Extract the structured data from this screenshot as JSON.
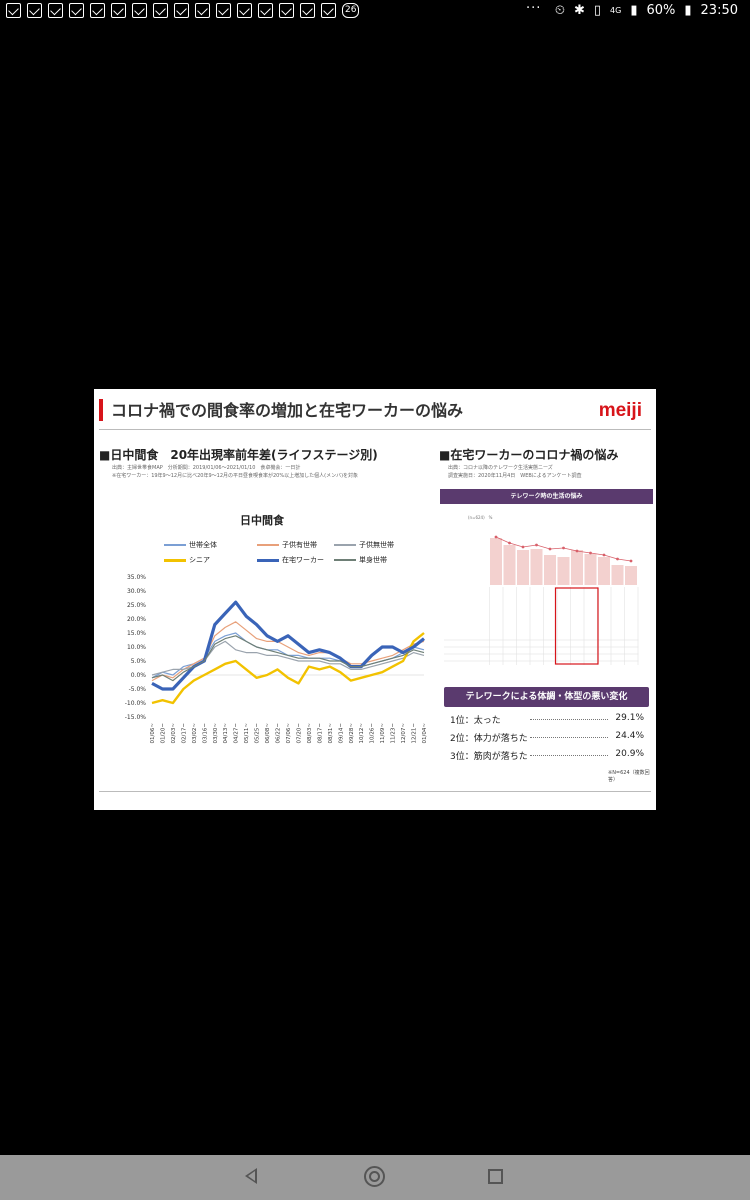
{
  "status_bar": {
    "notification_icons": [
      "mail-icon",
      "mail-icon",
      "mail-icon",
      "mail-icon",
      "mail-icon",
      "mail-icon",
      "mail-icon",
      "mail-icon",
      "mail-icon",
      "mail-icon",
      "mail-icon",
      "mail-icon",
      "mail-icon",
      "mail-icon",
      "mail-icon",
      "mail-icon"
    ],
    "badge": "26",
    "more": "···",
    "network": "4G",
    "battery": "60%",
    "time": "23:50"
  },
  "slide": {
    "title": "コロナ禍での間食率の増加と在宅ワーカーの悩み",
    "logo": "meiji",
    "left": {
      "heading": "■日中間食　20年出現率前年差(ライフステージ別)",
      "source_line1": "出典：主婦世帯食MAP　分析期間：2019/01/06〜2021/01/10　食卓機会：一日計",
      "source_line2": "※在宅ワーカー：19年9〜12月に比べ20年9〜12月の平日昼食喫食率が20%以上増加した個人(メンバ)を対象"
    },
    "right": {
      "heading": "■在宅ワーカーのコロナ禍の悩み",
      "source_line1": "出典：コロナ以降のテレワーク生活実態ニーズ",
      "source_line2": "調査実施日：2020年11月4日　WEBによるアンケート調査",
      "banner": "テレワーク時の生活の悩み",
      "mini_y_unit": "(n=624)　%",
      "rank_banner": "テレワークによる体調・体型の悪い変化",
      "ranks": [
        {
          "label": "1位：太った",
          "value": "29.1%"
        },
        {
          "label": "2位：体力が落ちた",
          "value": "24.4%"
        },
        {
          "label": "3位：筋肉が落ちた",
          "value": "20.9%"
        }
      ],
      "note": "※N=624（複数回答）"
    }
  },
  "chart_data": {
    "type": "line",
    "title": "日中間食",
    "ylim": [
      -15,
      35
    ],
    "yticks": [
      "35.0%",
      "30.0%",
      "25.0%",
      "20.0%",
      "15.0%",
      "10.0%",
      "5.0%",
      "0.0%",
      "-5.0%",
      "-10.0%",
      "-15.0%"
    ],
    "categories": [
      "01/06~",
      "01/20~",
      "02/03~",
      "02/17~",
      "03/02~",
      "03/16~",
      "03/30~",
      "04/13~",
      "04/27~",
      "05/11~",
      "05/25~",
      "06/08~",
      "06/22~",
      "07/06~",
      "07/20~",
      "08/03~",
      "08/17~",
      "08/31~",
      "09/14~",
      "09/28~",
      "10/12~",
      "10/26~",
      "11/09~",
      "11/23~",
      "12/07~",
      "12/21~",
      "01/04~"
    ],
    "series": [
      {
        "name": "世帯全体",
        "color": "#7b9fd4",
        "width": 1.2,
        "values": [
          -1,
          1,
          0,
          3,
          4,
          6,
          12,
          14,
          15,
          12,
          10,
          9,
          9,
          7,
          7,
          6,
          6,
          6,
          5,
          3,
          3,
          4,
          5,
          6,
          8,
          10,
          9
        ]
      },
      {
        "name": "子供有世帯",
        "color": "#e8a07a",
        "width": 1.2,
        "values": [
          -2,
          0,
          -1,
          2,
          4,
          6,
          14,
          17,
          19,
          16,
          13,
          12,
          12,
          10,
          8,
          7,
          8,
          8,
          6,
          4,
          4,
          5,
          6,
          7,
          9,
          11,
          12
        ]
      },
      {
        "name": "子供無世帯",
        "color": "#9aa3ad",
        "width": 1.2,
        "values": [
          0,
          1,
          2,
          2,
          3,
          5,
          10,
          12,
          9,
          8,
          8,
          7,
          7,
          6,
          5,
          5,
          5,
          4,
          4,
          2,
          2,
          3,
          4,
          5,
          6,
          8,
          7
        ]
      },
      {
        "name": "シニア",
        "color": "#f2c200",
        "width": 2.4,
        "values": [
          -10,
          -9,
          -10,
          -5,
          -2,
          0,
          2,
          4,
          5,
          2,
          -1,
          0,
          2,
          -1,
          -3,
          3,
          2,
          3,
          1,
          -2,
          -1,
          0,
          1,
          3,
          5,
          12,
          15
        ]
      },
      {
        "name": "在宅ワーカー",
        "color": "#3a64b8",
        "width": 3.2,
        "values": [
          -3,
          -5,
          -5,
          -1,
          3,
          5,
          18,
          22,
          26,
          21,
          18,
          14,
          12,
          14,
          11,
          8,
          9,
          8,
          6,
          3,
          3,
          7,
          10,
          10,
          8,
          10,
          13
        ]
      },
      {
        "name": "単身世帯",
        "color": "#6e7f76",
        "width": 1.2,
        "values": [
          -1,
          0,
          -2,
          1,
          3,
          5,
          11,
          13,
          14,
          12,
          10,
          9,
          8,
          7,
          6,
          6,
          6,
          5,
          5,
          3,
          3,
          4,
          5,
          6,
          7,
          9,
          8
        ]
      }
    ]
  }
}
